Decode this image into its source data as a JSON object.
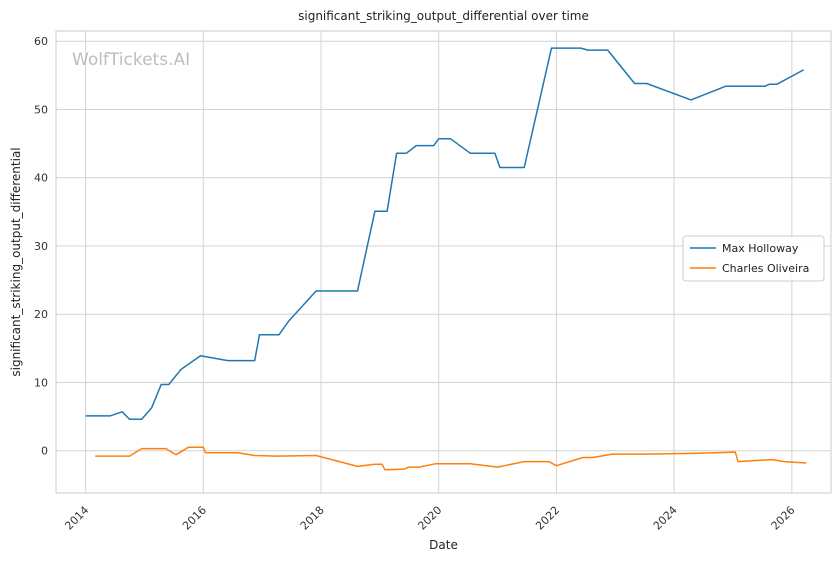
{
  "chart_data": {
    "type": "line",
    "title": "significant_striking_output_differential over time",
    "xlabel": "Date",
    "ylabel": "significant_striking_output_differential",
    "watermark": "WolfTickets.AI",
    "xlim": [
      "2013-07-01",
      "2026-09-01"
    ],
    "ylim": [
      -6.2,
      61.5
    ],
    "x_ticks": [
      "2014",
      "2016",
      "2018",
      "2020",
      "2022",
      "2024",
      "2026"
    ],
    "y_ticks": [
      0,
      10,
      20,
      30,
      40,
      50,
      60
    ],
    "grid": true,
    "legend_position": "center-right",
    "series": [
      {
        "name": "Max Holloway",
        "color": "#1f77b4",
        "points": [
          [
            "2014-01-01",
            5.1
          ],
          [
            "2014-06-01",
            5.1
          ],
          [
            "2014-08-15",
            5.7
          ],
          [
            "2014-10-01",
            4.6
          ],
          [
            "2014-12-15",
            4.6
          ],
          [
            "2015-02-15",
            6.3
          ],
          [
            "2015-04-15",
            9.7
          ],
          [
            "2015-06-01",
            9.7
          ],
          [
            "2015-08-15",
            11.9
          ],
          [
            "2015-12-15",
            13.9
          ],
          [
            "2016-06-01",
            13.2
          ],
          [
            "2016-11-15",
            13.2
          ],
          [
            "2016-12-15",
            17.0
          ],
          [
            "2017-04-15",
            17.0
          ],
          [
            "2017-06-15",
            19.0
          ],
          [
            "2017-12-01",
            23.4
          ],
          [
            "2018-08-15",
            23.4
          ],
          [
            "2018-12-01",
            35.1
          ],
          [
            "2019-02-15",
            35.1
          ],
          [
            "2019-04-15",
            43.6
          ],
          [
            "2019-06-15",
            43.6
          ],
          [
            "2019-08-15",
            44.7
          ],
          [
            "2019-12-01",
            44.7
          ],
          [
            "2020-01-01",
            45.7
          ],
          [
            "2020-03-15",
            45.7
          ],
          [
            "2020-07-15",
            43.6
          ],
          [
            "2020-12-15",
            43.6
          ],
          [
            "2021-01-15",
            41.5
          ],
          [
            "2021-06-15",
            41.5
          ],
          [
            "2021-12-01",
            59.0
          ],
          [
            "2022-06-01",
            59.0
          ],
          [
            "2022-07-15",
            58.7
          ],
          [
            "2022-11-15",
            58.7
          ],
          [
            "2023-05-01",
            53.8
          ],
          [
            "2023-07-15",
            53.8
          ],
          [
            "2024-04-15",
            51.4
          ],
          [
            "2024-11-15",
            53.4
          ],
          [
            "2025-07-15",
            53.4
          ],
          [
            "2025-08-15",
            53.7
          ],
          [
            "2025-10-01",
            53.7
          ],
          [
            "2026-03-15",
            55.8
          ]
        ]
      },
      {
        "name": "Charles Oliveira",
        "color": "#ff7f0e",
        "points": [
          [
            "2014-03-01",
            -0.8
          ],
          [
            "2014-10-01",
            -0.8
          ],
          [
            "2014-12-15",
            0.3
          ],
          [
            "2015-05-15",
            0.3
          ],
          [
            "2015-07-15",
            -0.6
          ],
          [
            "2015-10-01",
            0.5
          ],
          [
            "2016-01-01",
            0.5
          ],
          [
            "2016-01-15",
            -0.3
          ],
          [
            "2016-08-01",
            -0.3
          ],
          [
            "2016-11-15",
            -0.7
          ],
          [
            "2017-04-01",
            -0.8
          ],
          [
            "2017-12-01",
            -0.7
          ],
          [
            "2018-08-15",
            -2.3
          ],
          [
            "2018-12-01",
            -2.0
          ],
          [
            "2019-01-15",
            -2.0
          ],
          [
            "2019-02-01",
            -2.8
          ],
          [
            "2019-06-01",
            -2.7
          ],
          [
            "2019-07-01",
            -2.4
          ],
          [
            "2019-09-01",
            -2.4
          ],
          [
            "2019-12-15",
            -1.9
          ],
          [
            "2020-07-15",
            -1.9
          ],
          [
            "2021-01-01",
            -2.4
          ],
          [
            "2021-06-15",
            -1.6
          ],
          [
            "2021-11-15",
            -1.6
          ],
          [
            "2022-01-01",
            -2.2
          ],
          [
            "2022-06-15",
            -1.0
          ],
          [
            "2022-08-15",
            -1.0
          ],
          [
            "2022-12-15",
            -0.5
          ],
          [
            "2023-07-01",
            -0.5
          ],
          [
            "2024-05-01",
            -0.4
          ],
          [
            "2025-01-15",
            -0.2
          ],
          [
            "2025-02-01",
            -1.6
          ],
          [
            "2025-09-01",
            -1.3
          ],
          [
            "2025-11-15",
            -1.6
          ],
          [
            "2026-04-01",
            -1.8
          ]
        ]
      }
    ]
  }
}
